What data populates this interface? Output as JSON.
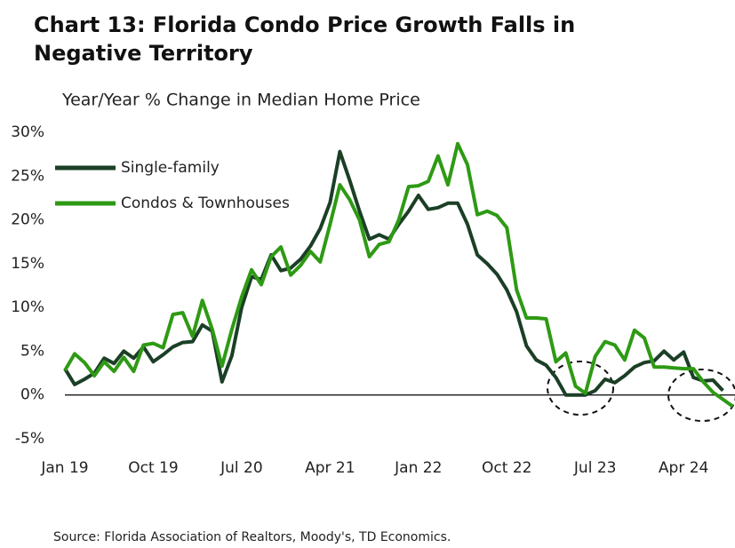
{
  "chart_data": {
    "type": "line",
    "title": "Chart 13: Florida Condo Price Growth Falls in Negative Territory",
    "subtitle": "Year/Year % Change in Median Home Price",
    "source": "Source: Florida Association of Realtors, Moody's, TD Economics.",
    "categories": [
      "Jan 19",
      null,
      null,
      null,
      null,
      null,
      null,
      null,
      null,
      "Oct 19",
      null,
      null,
      null,
      null,
      null,
      null,
      null,
      null,
      "Jul 20",
      null,
      null,
      null,
      null,
      null,
      null,
      null,
      null,
      "Apr 21",
      null,
      null,
      null,
      null,
      null,
      null,
      null,
      null,
      "Jan 22",
      null,
      null,
      null,
      null,
      null,
      null,
      null,
      null,
      "Oct 22",
      null,
      null,
      null,
      null,
      null,
      null,
      null,
      null,
      "Jul 23",
      null,
      null,
      null,
      null,
      null,
      null,
      null,
      null,
      "Apr 24",
      null,
      null,
      null,
      null,
      null
    ],
    "series": [
      {
        "name": "Single-family",
        "color": "#1b3f26",
        "values": [
          3.0,
          1.2,
          1.8,
          2.5,
          4.2,
          3.6,
          5.0,
          4.2,
          5.5,
          3.8,
          4.6,
          5.5,
          6.0,
          6.1,
          8.0,
          7.3,
          1.5,
          4.5,
          10.0,
          13.5,
          13.2,
          16.0,
          14.2,
          14.5,
          15.5,
          17.0,
          19.0,
          22.0,
          27.8,
          24.5,
          21.0,
          17.8,
          18.3,
          17.8,
          19.5,
          21.0,
          22.8,
          21.2,
          21.4,
          21.9,
          21.9,
          19.5,
          16.0,
          15.0,
          13.8,
          12.0,
          9.5,
          5.6,
          4.0,
          3.4,
          2.0,
          0.0,
          0.0,
          0.0,
          0.5,
          1.8,
          1.4,
          2.2,
          3.2,
          3.7,
          3.9,
          5.0,
          4.0,
          4.9,
          2.0,
          1.6,
          1.7,
          0.5,
          null
        ]
      },
      {
        "name": "Condos & Townhouses",
        "color": "#2e9a14",
        "values": [
          2.8,
          4.7,
          3.7,
          2.2,
          3.8,
          2.7,
          4.3,
          2.7,
          5.7,
          5.9,
          5.4,
          9.2,
          9.4,
          6.7,
          10.8,
          7.5,
          3.3,
          7.5,
          11.2,
          14.3,
          12.6,
          15.8,
          16.9,
          13.7,
          14.8,
          16.4,
          15.2,
          19.5,
          24.0,
          22.3,
          20.0,
          15.8,
          17.2,
          17.5,
          20.0,
          23.8,
          23.9,
          24.4,
          27.3,
          24.0,
          28.7,
          26.3,
          20.6,
          21.0,
          20.5,
          19.1,
          12.0,
          8.8,
          8.8,
          8.7,
          3.8,
          4.8,
          1.0,
          0.2,
          4.4,
          6.1,
          5.7,
          4.0,
          7.4,
          6.5,
          3.2,
          3.2,
          3.1,
          3.0,
          3.0,
          1.5,
          0.3,
          -0.5,
          -1.3
        ]
      }
    ],
    "ylim": [
      -5,
      30
    ],
    "yticks": [
      {
        "value": -5,
        "label": "-5%"
      },
      {
        "value": 0,
        "label": "0%"
      },
      {
        "value": 5,
        "label": "5%"
      },
      {
        "value": 10,
        "label": "10%"
      },
      {
        "value": 15,
        "label": "15%"
      },
      {
        "value": 20,
        "label": "20%"
      },
      {
        "value": 25,
        "label": "25%"
      },
      {
        "value": 30,
        "label": "30%"
      }
    ],
    "grid": false
  }
}
